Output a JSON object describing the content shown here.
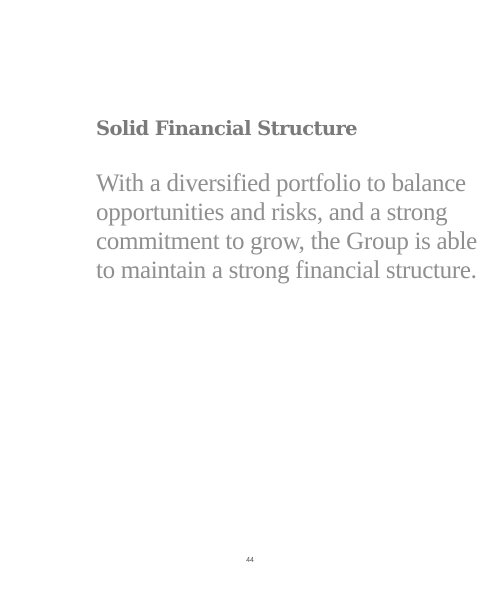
{
  "section": {
    "heading": "Solid Financial Structure",
    "body_lines": [
      "With a diversified portfolio to balance",
      "opportunities and risks, and a strong",
      "commitment to grow, the Group is able",
      "to maintain a strong financial structure."
    ]
  },
  "footer": {
    "page_number": "44"
  }
}
